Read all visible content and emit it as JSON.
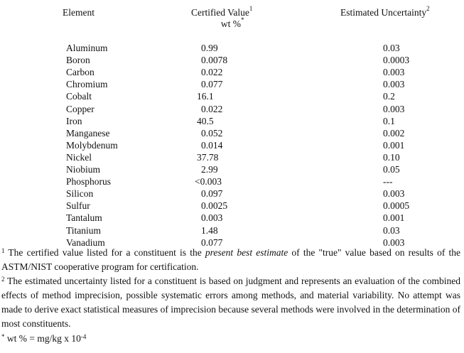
{
  "headers": {
    "element": "Element",
    "certified": "Certified Value",
    "certified_sup": "1",
    "certified_unit": "wt %",
    "certified_unit_sup": "*",
    "uncertainty": "Estimated Uncertainty",
    "uncertainty_sup": "2"
  },
  "rows": [
    {
      "element": "Aluminum",
      "value": "0.99",
      "uncertainty": "0.03"
    },
    {
      "element": "Boron",
      "value": "0.0078",
      "uncertainty": "0.0003"
    },
    {
      "element": "Carbon",
      "value": "0.022",
      "uncertainty": "0.003"
    },
    {
      "element": "Chromium",
      "value": "0.077",
      "uncertainty": "0.003"
    },
    {
      "element": "Cobalt",
      "value": "16.1",
      "uncertainty": "0.2"
    },
    {
      "element": "Copper",
      "value": "0.022",
      "uncertainty": "0.003"
    },
    {
      "element": "Iron",
      "value": "40.5",
      "uncertainty": "0.1"
    },
    {
      "element": "Manganese",
      "value": "0.052",
      "uncertainty": "0.002"
    },
    {
      "element": "Molybdenum",
      "value": "0.014",
      "uncertainty": "0.001"
    },
    {
      "element": "Nickel",
      "value": "37.78",
      "uncertainty": "0.10"
    },
    {
      "element": "Niobium",
      "value": "2.99",
      "uncertainty": "0.05"
    },
    {
      "element": "Phosphorus",
      "value": "<0.003",
      "uncertainty": "---"
    },
    {
      "element": "Silicon",
      "value": "0.097",
      "uncertainty": "0.003"
    },
    {
      "element": "Sulfur",
      "value": "0.0025",
      "uncertainty": "0.0005"
    },
    {
      "element": "Tantalum",
      "value": "0.003",
      "uncertainty": "0.001"
    },
    {
      "element": "Titanium",
      "value": "1.48",
      "uncertainty": "0.03"
    },
    {
      "element": "Vanadium",
      "value": "0.077",
      "uncertainty": "0.003"
    }
  ],
  "footnotes": {
    "note1_mark": "1",
    "note1_a": " The certified value listed for a constituent is the ",
    "note1_em": "present best estimate",
    "note1_b": " of the \"true\" value based on results of the ASTM/NIST cooperative program for certification.",
    "note2_mark": "2",
    "note2_text": " The estimated uncertainty listed for a constituent is based on judgment and represents an evaluation of the combined effects of method imprecision, possible systematic errors among methods, and material variability.  No attempt was made to derive exact statistical measures of imprecision because several methods were involved in the determination of most constituents.",
    "note3_mark": "*",
    "note3_text": " wt % = mg/kg x 10",
    "note3_exp": "-4"
  }
}
